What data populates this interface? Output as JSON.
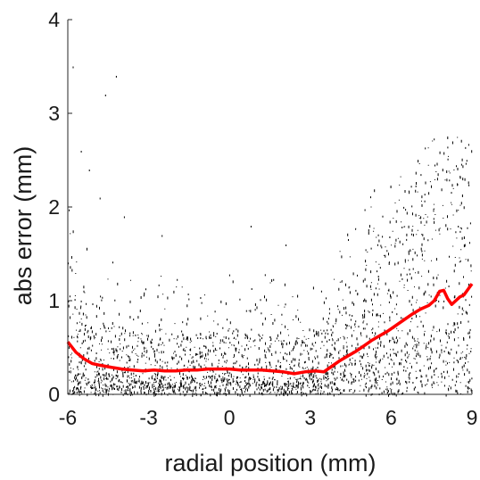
{
  "chart_data": {
    "type": "scatter",
    "title": "",
    "xlabel": "radial position (mm)",
    "ylabel": "abs error (mm)",
    "xlim": [
      -6,
      9
    ],
    "ylim": [
      0,
      4
    ],
    "xticks": [
      -6,
      -3,
      0,
      3,
      6,
      9
    ],
    "yticks": [
      0,
      1,
      2,
      3,
      4
    ],
    "xtick_labels": [
      "-6",
      "-3",
      "0",
      "3",
      "6",
      "9"
    ],
    "ytick_labels": [
      "0",
      "1",
      "2",
      "3",
      "4"
    ],
    "grid": false,
    "legend": "none",
    "series": [
      {
        "kind": "scatter",
        "color": "#000000",
        "description_points": "dense cloud of individual absolute errors",
        "envelope": {
          "x": [
            -6,
            -5,
            -4,
            -3,
            -2,
            -1,
            0,
            1,
            2,
            3,
            4,
            5,
            6,
            7,
            7.5,
            8,
            8.5,
            9
          ],
          "p50": [
            0.35,
            0.25,
            0.22,
            0.2,
            0.2,
            0.2,
            0.2,
            0.2,
            0.18,
            0.18,
            0.3,
            0.45,
            0.6,
            0.7,
            0.75,
            0.8,
            0.8,
            0.85
          ],
          "p90": [
            1.2,
            0.8,
            0.7,
            0.65,
            0.65,
            0.65,
            0.65,
            0.65,
            0.6,
            0.6,
            0.9,
            1.4,
            1.7,
            2.0,
            2.3,
            2.4,
            2.3,
            2.4
          ],
          "max": [
            2.0,
            1.6,
            1.4,
            1.3,
            1.3,
            1.3,
            1.3,
            1.3,
            1.25,
            1.2,
            1.6,
            2.1,
            2.4,
            2.6,
            2.8,
            2.8,
            2.75,
            2.9
          ]
        },
        "outliers": [
          {
            "x": -5.8,
            "y": 3.5
          },
          {
            "x": -5.5,
            "y": 2.6
          },
          {
            "x": -4.6,
            "y": 3.2
          },
          {
            "x": -4.8,
            "y": 2.1
          },
          {
            "x": -3.9,
            "y": 1.9
          },
          {
            "x": -5.2,
            "y": 2.4
          },
          {
            "x": -2.5,
            "y": 1.7
          },
          {
            "x": 0.8,
            "y": 1.8
          },
          {
            "x": 2.1,
            "y": 1.6
          },
          {
            "x": -4.2,
            "y": 3.4
          }
        ]
      },
      {
        "kind": "line",
        "color": "#ff0000",
        "x": [
          -6,
          -5.7,
          -5.4,
          -5.1,
          -4.8,
          -4.4,
          -4.0,
          -3.6,
          -3.2,
          -2.8,
          -2.4,
          -2.0,
          -1.6,
          -1.2,
          -0.8,
          -0.4,
          0,
          0.4,
          0.8,
          1.2,
          1.6,
          2.0,
          2.4,
          2.8,
          3.2,
          3.5,
          3.8,
          4.1,
          4.4,
          4.7,
          5.0,
          5.3,
          5.6,
          5.9,
          6.2,
          6.5,
          6.8,
          7.1,
          7.4,
          7.6,
          7.8,
          7.95,
          8.1,
          8.25,
          8.4,
          8.55,
          8.7,
          8.85,
          9.0
        ],
        "y": [
          0.56,
          0.45,
          0.38,
          0.33,
          0.31,
          0.29,
          0.27,
          0.26,
          0.25,
          0.26,
          0.25,
          0.25,
          0.26,
          0.26,
          0.27,
          0.27,
          0.27,
          0.26,
          0.26,
          0.26,
          0.25,
          0.24,
          0.22,
          0.24,
          0.25,
          0.24,
          0.3,
          0.36,
          0.41,
          0.46,
          0.52,
          0.58,
          0.63,
          0.68,
          0.74,
          0.8,
          0.86,
          0.91,
          0.95,
          1.0,
          1.1,
          1.11,
          1.02,
          0.96,
          1.0,
          1.04,
          1.06,
          1.12,
          1.18
        ]
      }
    ]
  }
}
